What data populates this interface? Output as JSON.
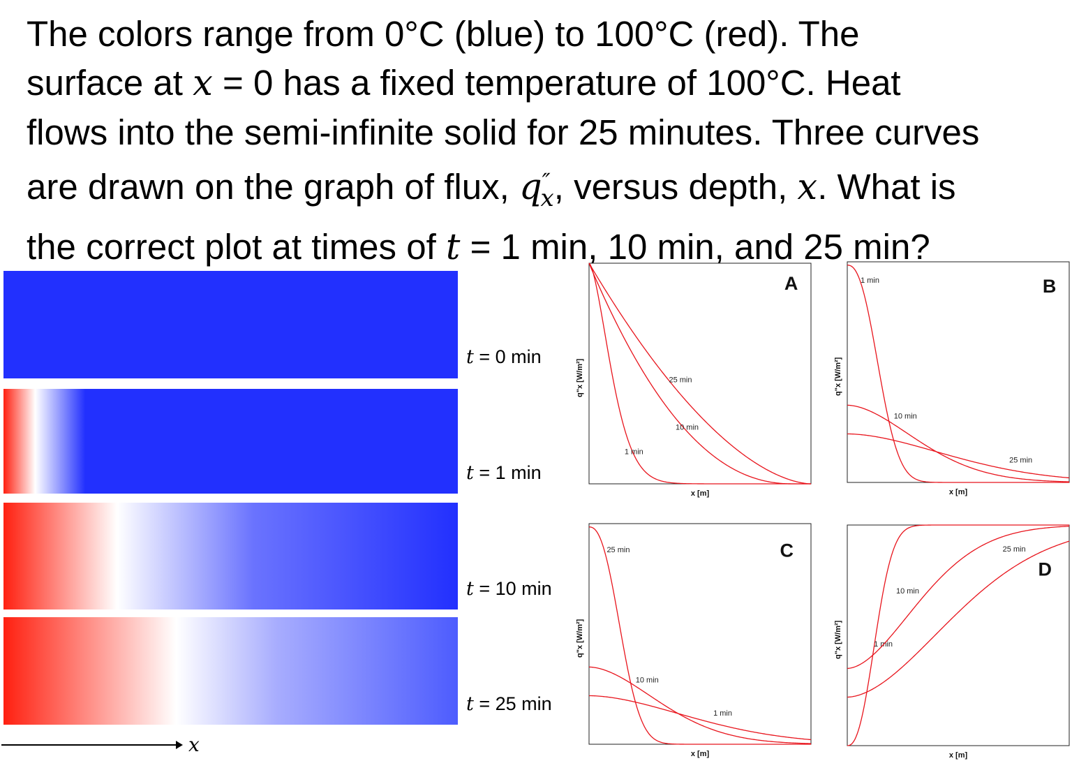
{
  "question": {
    "line1": {
      "a": "The colors range from 0°C (blue) to 100°C (red). The"
    },
    "line2": {
      "a": "surface at ",
      "var": "x",
      "b": " = 0 has a fixed temperature of 100°C. Heat"
    },
    "line3": {
      "a": "flows into the semi-infinite solid for 25 minutes. Three curves"
    },
    "line4": {
      "a": "are drawn on the graph of flux, ",
      "var": "q",
      "sup": "″",
      "sub": "x",
      "b": ", versus depth, ",
      "var2": "x",
      "c": ". What is"
    },
    "line5": {
      "a": "the correct plot at times of ",
      "var": "t",
      "b": " = 1 min, 10 min, and 25 min?"
    }
  },
  "strips": [
    {
      "t_var": "t",
      "t_text": " = 0 min",
      "gradient": [
        [
          "#2230fe",
          0
        ],
        [
          "#2230fe",
          1
        ]
      ]
    },
    {
      "t_var": "t",
      "t_text": " = 1 min",
      "gradient": [
        [
          "#ff2010",
          0
        ],
        [
          "#ffffff",
          0.07
        ],
        [
          "#2230fe",
          0.18
        ],
        [
          "#2230fe",
          1
        ]
      ]
    },
    {
      "t_var": "t",
      "t_text": " = 10 min",
      "gradient": [
        [
          "#ff2010",
          0
        ],
        [
          "#ffffff",
          0.25
        ],
        [
          "#6a73fe",
          0.55
        ],
        [
          "#2230fe",
          1
        ]
      ]
    },
    {
      "t_var": "t",
      "t_text": " = 25 min",
      "gradient": [
        [
          "#ff2010",
          0
        ],
        [
          "#ffffff",
          0.38
        ],
        [
          "#a8adfe",
          0.6
        ],
        [
          "#4d5cfe",
          1
        ]
      ]
    }
  ],
  "x_arrow_label": "x",
  "colors": {
    "curve": "#e8141c",
    "blue": "#2230fe",
    "red": "#ff2010"
  },
  "plots": [
    {
      "letter": "A",
      "xlabel": "x  [m]",
      "ylabel": "q\"x  [W/m²]",
      "curves": [
        {
          "label": "1 min",
          "shape": "erfc-steep"
        },
        {
          "label": "10 min",
          "shape": "erfc-mid"
        },
        {
          "label": "25 min",
          "shape": "erfc-wide"
        }
      ]
    },
    {
      "letter": "B",
      "xlabel": "x  [m]",
      "ylabel": "q\"x  [W/m²]",
      "curves": [
        {
          "label": "1 min",
          "shape": "flux-steep"
        },
        {
          "label": "10 min",
          "shape": "flux-mid"
        },
        {
          "label": "25 min",
          "shape": "flux-wide"
        }
      ]
    },
    {
      "letter": "C",
      "xlabel": "x  [m]",
      "ylabel": "q\"x  [W/m²]",
      "curves": [
        {
          "label": "25 min",
          "shape": "flux-steep"
        },
        {
          "label": "10 min",
          "shape": "flux-mid"
        },
        {
          "label": "1 min",
          "shape": "flux-wide"
        }
      ]
    },
    {
      "letter": "D",
      "xlabel": "x  [m]",
      "ylabel": "q\"x  [W/m²]",
      "curves": [
        {
          "label": "1 min",
          "shape": "rise-steep"
        },
        {
          "label": "10 min",
          "shape": "rise-mid"
        },
        {
          "label": "25 min",
          "shape": "rise-wide"
        }
      ]
    }
  ]
}
